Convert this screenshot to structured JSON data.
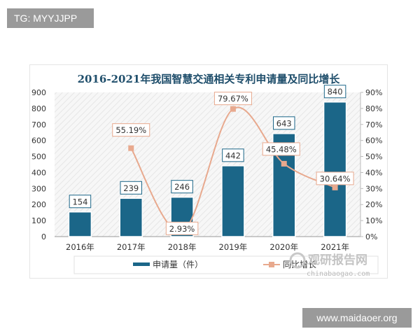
{
  "watermark_top": "TG: MYYJJPP",
  "watermark_bottom": "www.maidaoer.org",
  "logo": {
    "name": "观研报告网",
    "url_text": "chinabaogao.com"
  },
  "chart_data": {
    "type": "bar+line",
    "title": "2016-2021年我国智慧交通相关专利申请量及同比增长",
    "categories": [
      "2016年",
      "2017年",
      "2018年",
      "2019年",
      "2020年",
      "2021年"
    ],
    "series": [
      {
        "name": "申请量（件）",
        "type": "bar",
        "axis": "left",
        "values": [
          154,
          239,
          246,
          442,
          643,
          840
        ],
        "labels": [
          "154",
          "239",
          "246",
          "442",
          "643",
          "840"
        ],
        "color": "#1b6688"
      },
      {
        "name": "同比增长",
        "type": "line",
        "axis": "right",
        "values": [
          null,
          55.19,
          2.93,
          79.67,
          45.48,
          30.64
        ],
        "labels": [
          "",
          "55.19%",
          "2.93%",
          "79.67%",
          "45.48%",
          "30.64%"
        ],
        "color": "#e8a98e"
      }
    ],
    "y_left": {
      "range": [
        0,
        900
      ],
      "ticks": [
        "0",
        "100",
        "200",
        "300",
        "400",
        "500",
        "600",
        "700",
        "800",
        "900"
      ]
    },
    "y_right": {
      "range": [
        0,
        90
      ],
      "ticks": [
        "0%",
        "10%",
        "20%",
        "30%",
        "40%",
        "50%",
        "60%",
        "70%",
        "80%",
        "90%"
      ]
    },
    "legend": "bottom",
    "grid": false
  }
}
